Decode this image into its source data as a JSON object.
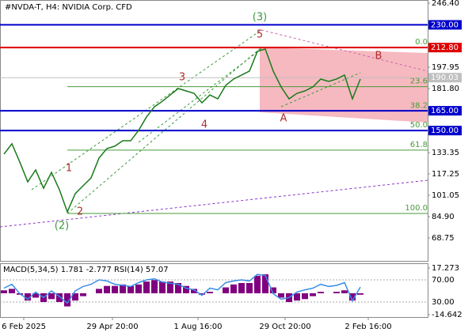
{
  "chart_data": {
    "type": "line",
    "title": "#NVDA-T, H4:  NVIDIA Corp. CFD",
    "color": "#1a7a1a",
    "values": [
      132.2,
      140,
      126.2,
      111.2,
      120.2,
      106.4,
      118.4,
      105.3,
      88.5,
      102.3,
      108.3,
      114.2,
      129.2,
      136.4,
      138.2,
      142.3,
      142.3,
      150.1,
      160.3,
      168,
      172.2,
      177,
      181.8,
      180,
      178.2,
      171,
      177,
      174,
      184.2,
      189,
      192,
      195,
      209.9,
      211.7,
      195,
      183,
      174,
      178.2,
      180,
      183,
      189,
      187.2,
      189,
      192,
      174,
      189
    ],
    "xlim": [
      -0.5,
      53.5
    ],
    "xticks": [
      {
        "value": 2.5,
        "label": "6 Feb 2025"
      },
      {
        "value": 13.7,
        "label": "29 Apr 20:00"
      },
      {
        "value": 24.5,
        "label": "1 Aug 16:00"
      },
      {
        "value": 35.5,
        "label": "29 Oct 20:00"
      },
      {
        "value": 46,
        "label": "2 Feb 16:00"
      }
    ],
    "ylim": [
      51.4,
      248.8
    ],
    "yticks": [
      {
        "value": 246.4,
        "label": "246.40"
      },
      {
        "value": 197.95,
        "label": "197.95"
      },
      {
        "value": 181.8,
        "label": "181.80"
      },
      {
        "value": 133.35,
        "label": "133.35"
      },
      {
        "value": 117.25,
        "label": "117.25"
      },
      {
        "value": 101.05,
        "label": "101.05"
      },
      {
        "value": 84.9,
        "label": "84.90"
      },
      {
        "value": 68.75,
        "label": "68.75"
      }
    ],
    "levels": [
      {
        "value": 230,
        "label": "230.00",
        "color": "#0000cc"
      },
      {
        "value": 212.8,
        "label": "212.80",
        "color": "#dd0000"
      },
      {
        "value": 190.03,
        "label": "190.03",
        "color": "#c0c0c0"
      },
      {
        "value": 165,
        "label": "165.00",
        "color": "#0000cc"
      },
      {
        "value": 150,
        "label": "150.00",
        "color": "#0000cc"
      }
    ],
    "fib_color": "#4a9a3a",
    "fib_levels": [
      {
        "value": 212.8,
        "label": "0.0"
      },
      {
        "value": 183.2,
        "label": "23.6"
      },
      {
        "value": 164.86,
        "label": "38.2"
      },
      {
        "value": 150.05,
        "label": "50.0"
      },
      {
        "value": 135.2,
        "label": "61.8"
      },
      {
        "value": 87.3,
        "label": "100.0"
      }
    ],
    "annotations": [
      "(3)",
      "5",
      "3",
      "4",
      "A",
      "B",
      "1",
      "2",
      "(2)"
    ],
    "indicator": {
      "label": "MACD(5,34,5) 1.781 -2.777 RSI(14) 57.07",
      "hist_color": "#800080",
      "rsi_color": "#3a8ee6",
      "ylim": [
        -14.642,
        17.273
      ],
      "yticks": [
        {
          "value": 17.273,
          "label": "17.273"
        },
        {
          "value": -14.642,
          "label": "-14.642"
        }
      ],
      "hist": [
        2,
        3,
        -1,
        -5,
        -3,
        -6,
        -4,
        -6,
        -9,
        -5,
        -2,
        0,
        3,
        5,
        5,
        6,
        5,
        6,
        8,
        9,
        8,
        8,
        7,
        5,
        3,
        -1,
        1,
        0,
        4,
        6,
        7,
        7,
        12,
        13,
        4,
        -3,
        -6,
        -5,
        -4,
        -2,
        1,
        0,
        1,
        2,
        -5,
        -1
      ],
      "rsi_lim": [
        0,
        100
      ],
      "rsi_ticks": [
        {
          "value": 70,
          "label": "70.00"
        },
        {
          "value": 30,
          "label": "30.00"
        }
      ],
      "rsi": [
        55,
        62,
        45,
        35,
        48,
        38,
        50,
        40,
        28,
        50,
        58,
        62,
        70,
        68,
        62,
        60,
        58,
        65,
        70,
        72,
        66,
        64,
        62,
        55,
        52,
        42,
        55,
        52,
        65,
        68,
        70,
        68,
        80,
        78,
        45,
        35,
        38,
        48,
        52,
        55,
        62,
        58,
        60,
        65,
        32,
        57
      ]
    }
  }
}
